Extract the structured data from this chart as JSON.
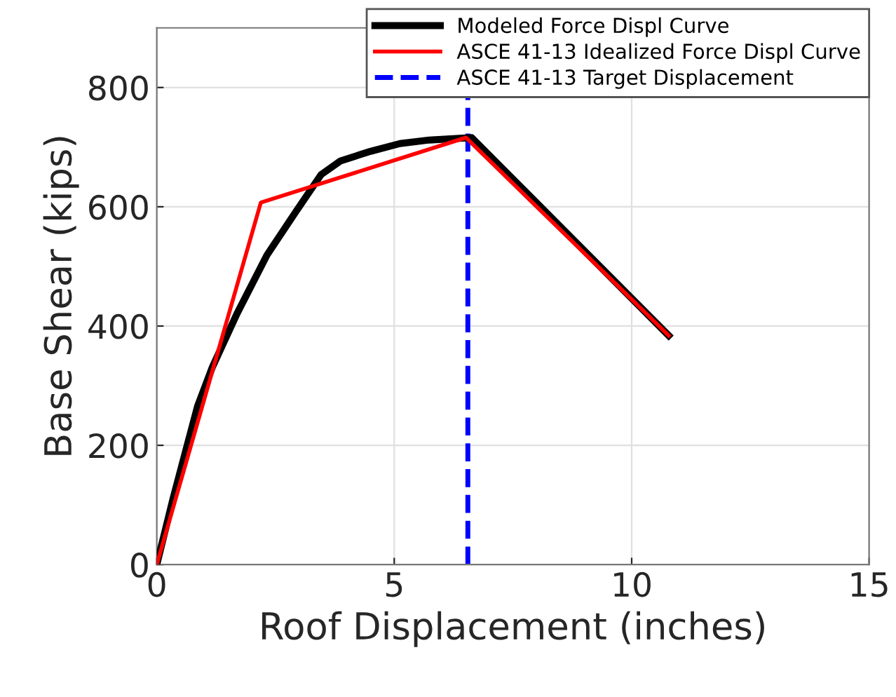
{
  "chart_data": {
    "type": "line",
    "xlabel": "Roof Displacement (inches)",
    "ylabel": "Base Shear (kips)",
    "xlim": [
      0,
      15
    ],
    "xticks": [
      0,
      5,
      10,
      15
    ],
    "ylim": [
      0,
      900
    ],
    "yticks": [
      0,
      200,
      400,
      600,
      800
    ],
    "grid": true,
    "legend": "top right",
    "marker": "none",
    "series": [
      {
        "name": "Modeled Force Displ Curve",
        "color": "#000000",
        "line_style": "solid",
        "x": [
          0,
          0.34,
          0.86,
          1.17,
          1.69,
          2.32,
          2.94,
          3.46,
          3.87,
          4.5,
          5.12,
          5.74,
          6.63,
          10.78
        ],
        "values": [
          0,
          110,
          266,
          331,
          421,
          519,
          593,
          654,
          677,
          693,
          706,
          712,
          716,
          384
        ]
      },
      {
        "name": "ASCE 41-13 Idealized Force Displ Curve",
        "color": "#ff0000",
        "line_style": "solid",
        "x": [
          0,
          2.19,
          6.51,
          10.78
        ],
        "values": [
          0,
          607,
          716,
          384
        ]
      }
    ],
    "ref_lines": [
      {
        "axis": "x",
        "value": 6.55,
        "label": "ASCE 41-13 Target Displacement",
        "color": "#0000ff",
        "line_style": "dashed"
      }
    ]
  }
}
